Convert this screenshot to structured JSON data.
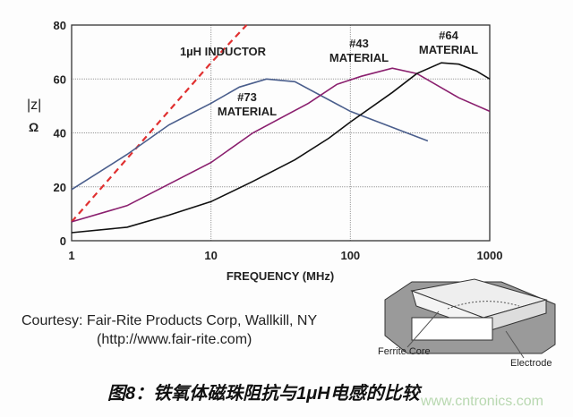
{
  "chart_data": {
    "type": "line",
    "xlabel": "FREQUENCY (MHz)",
    "ylabel": "|z|",
    "yunit": "Ω",
    "xscale": "log",
    "xlim": [
      1,
      1000
    ],
    "ylim": [
      0,
      80
    ],
    "xticks": [
      "1",
      "10",
      "100",
      "1000"
    ],
    "yticks": [
      "0",
      "20",
      "40",
      "60",
      "80"
    ],
    "grid": true,
    "series": [
      {
        "name": "1µH INDUCTOR",
        "color": "#e03030",
        "dashed": true,
        "x": [
          1,
          10,
          18
        ],
        "y": [
          7,
          66,
          80
        ]
      },
      {
        "name": "#73 MATERIAL",
        "color": "#4a5e8c",
        "x": [
          1,
          2.5,
          5,
          10,
          16,
          25,
          40,
          100,
          360
        ],
        "y": [
          19,
          32,
          43,
          51,
          57,
          60,
          59,
          48,
          37
        ]
      },
      {
        "name": "#43 MATERIAL",
        "color": "#8a1f6e",
        "x": [
          1,
          2.5,
          5,
          10,
          20,
          50,
          80,
          120,
          200,
          300,
          600,
          1000
        ],
        "y": [
          7,
          13,
          21,
          29,
          40,
          51,
          58,
          61,
          64,
          62,
          53,
          48
        ]
      },
      {
        "name": "#64 MATERIAL",
        "color": "#111111",
        "x": [
          1,
          2.5,
          5,
          10,
          20,
          40,
          70,
          100,
          200,
          300,
          450,
          600,
          800,
          1000
        ],
        "y": [
          3,
          5,
          9.5,
          14.5,
          22,
          30,
          38,
          44,
          55,
          62,
          66,
          65.5,
          63,
          60
        ]
      }
    ],
    "annotations": {
      "inductor": "1µH INDUCTOR",
      "m73a": "#73",
      "m73b": "MATERIAL",
      "m43a": "#43",
      "m43b": "MATERIAL",
      "m64a": "#64",
      "m64b": "MATERIAL"
    }
  },
  "courtesy": "Courtesy: Fair-Rite Products Corp, Wallkill, NY",
  "url": "(http://www.fair-rite.com)",
  "diagram": {
    "ferrite_core": "Ferrite Core",
    "electrode": "Electrode"
  },
  "caption": "图8：铁氧体磁珠阻抗与1μH电感的比较",
  "watermark": "www.cntronics.com"
}
